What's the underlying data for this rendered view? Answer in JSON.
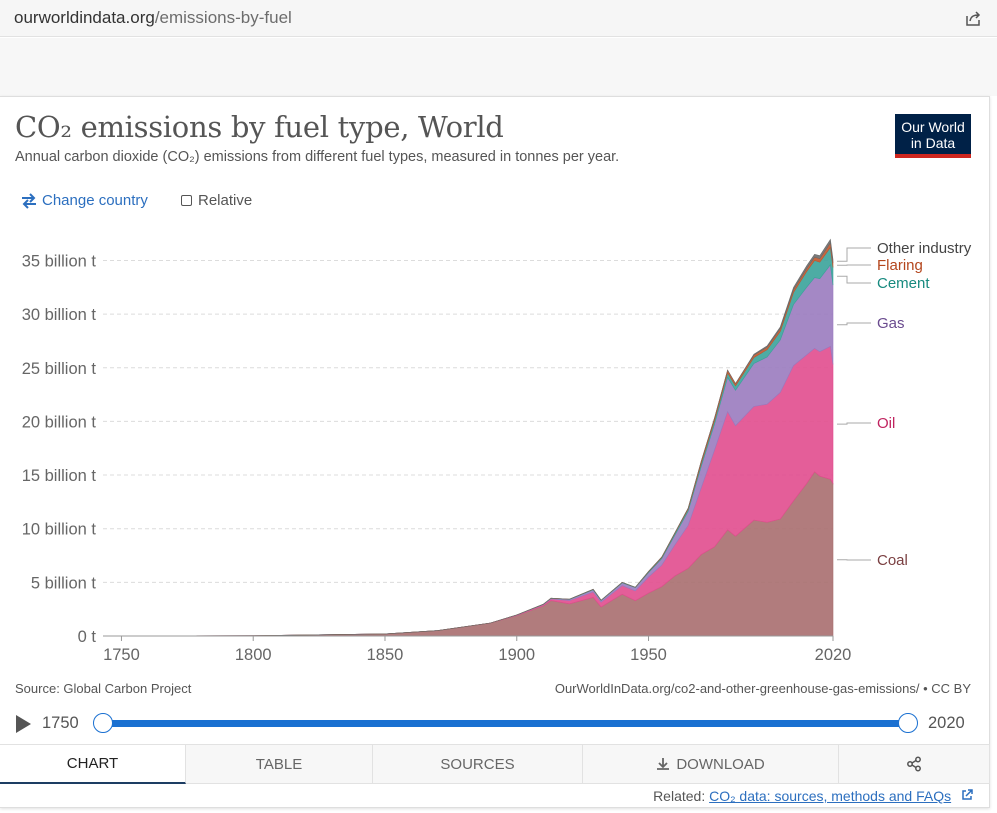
{
  "browser": {
    "url_host": "ourworldindata.org",
    "url_path": "/emissions-by-fuel"
  },
  "header": {
    "title": "CO₂ emissions by fuel type, World",
    "subtitle": "Annual carbon dioxide (CO₂) emissions from different fuel types, measured in tonnes per year.",
    "logo_line1": "Our World",
    "logo_line2": "in Data"
  },
  "controls": {
    "change_country": "Change country",
    "relative": "Relative"
  },
  "footer": {
    "source": "Source: Global Carbon Project",
    "citation": "OurWorldInData.org/co2-and-other-greenhouse-gas-emissions/ • CC BY",
    "related_label": "Related:",
    "related_link": "CO₂ data: sources, methods and FAQs"
  },
  "timeline": {
    "start": "1750",
    "end": "2020"
  },
  "tabs": [
    {
      "label": "CHART"
    },
    {
      "label": "TABLE"
    },
    {
      "label": "SOURCES"
    },
    {
      "label": "DOWNLOAD"
    }
  ],
  "colors": {
    "coal": "#a86e6f",
    "oil": "#e14c8e",
    "gas": "#9a7bbf",
    "cement": "#3aa39a",
    "flaring": "#c0562c",
    "other": "#6b6b6b",
    "accent": "#1a70d1"
  },
  "chart_data": {
    "type": "area",
    "stacked": true,
    "title": "CO₂ emissions by fuel type, World",
    "x": [
      1750,
      1800,
      1850,
      1870,
      1890,
      1900,
      1910,
      1913,
      1920,
      1929,
      1932,
      1940,
      1945,
      1950,
      1955,
      1960,
      1965,
      1970,
      1975,
      1980,
      1983,
      1990,
      1995,
      2000,
      2005,
      2010,
      2013,
      2015,
      2019,
      2020
    ],
    "xlim": [
      1743,
      2020
    ],
    "ylim": [
      0,
      37000000000
    ],
    "yticks": [
      0,
      5000000000,
      10000000000,
      15000000000,
      20000000000,
      25000000000,
      30000000000,
      35000000000
    ],
    "ytick_labels": [
      "0 t",
      "5 billion t",
      "10 billion t",
      "15 billion t",
      "20 billion t",
      "25 billion t",
      "30 billion t",
      "35 billion t"
    ],
    "xticks": [
      1750,
      1800,
      1850,
      1900,
      1950,
      2020
    ],
    "xtick_labels": [
      "1750",
      "1800",
      "1850",
      "1900",
      "1950",
      "2020"
    ],
    "grid": true,
    "series": [
      {
        "name": "Coal",
        "key": "coal",
        "values": [
          9000000.0,
          28000000.0,
          197000000.0,
          500000000.0,
          1200000000.0,
          1900000000.0,
          2800000000.0,
          3300000000.0,
          3000000000.0,
          3600000000.0,
          2700000000.0,
          3900000000.0,
          3300000000.0,
          4000000000.0,
          4600000000.0,
          5600000000.0,
          6300000000.0,
          7600000000.0,
          8300000000.0,
          9900000000.0,
          9300000000.0,
          10800000000.0,
          10600000000.0,
          10900000000.0,
          12600000000.0,
          14200000000.0,
          15300000000.0,
          14900000000.0,
          14600000000.0,
          14200000000.0
        ]
      },
      {
        "name": "Oil",
        "key": "oil",
        "values": [
          0,
          0,
          0,
          0,
          10000000.0,
          50000000.0,
          100000000.0,
          150000000.0,
          300000000.0,
          500000000.0,
          450000000.0,
          800000000.0,
          900000000.0,
          1500000000.0,
          2000000000.0,
          2900000000.0,
          4000000000.0,
          6200000000.0,
          9000000000.0,
          11000000000.0,
          10300000000.0,
          10600000000.0,
          11000000000.0,
          11800000000.0,
          12600000000.0,
          12000000000.0,
          11500000000.0,
          11600000000.0,
          12400000000.0,
          11100000000.0
        ]
      },
      {
        "name": "Gas",
        "key": "gas",
        "values": [
          0,
          0,
          0,
          0,
          0,
          10000000.0,
          30000000.0,
          50000000.0,
          100000000.0,
          200000000.0,
          150000000.0,
          250000000.0,
          300000000.0,
          400000000.0,
          600000000.0,
          900000000.0,
          1300000000.0,
          2000000000.0,
          2400000000.0,
          3200000000.0,
          3300000000.0,
          4000000000.0,
          4400000000.0,
          4900000000.0,
          5700000000.0,
          6300000000.0,
          6600000000.0,
          6800000000.0,
          7600000000.0,
          7400000000.0
        ]
      },
      {
        "name": "Cement",
        "key": "cement",
        "values": [
          0,
          0,
          0,
          0,
          5000000.0,
          10000000.0,
          20000000.0,
          20000000.0,
          30000000.0,
          50000000.0,
          40000000.0,
          50000000.0,
          40000000.0,
          80000000.0,
          110000000.0,
          160000000.0,
          210000000.0,
          280000000.0,
          330000000.0,
          420000000.0,
          420000000.0,
          560000000.0,
          680000000.0,
          800000000.0,
          1110000000.0,
          1460000000.0,
          1600000000.0,
          1540000000.0,
          1620000000.0,
          1640000000.0
        ]
      },
      {
        "name": "Flaring",
        "key": "flaring",
        "values": [
          0,
          0,
          0,
          0,
          0,
          0,
          0,
          0,
          0,
          0,
          0,
          0,
          0,
          30000000.0,
          40000000.0,
          60000000.0,
          90000000.0,
          200000000.0,
          250000000.0,
          250000000.0,
          200000000.0,
          220000000.0,
          240000000.0,
          260000000.0,
          270000000.0,
          280000000.0,
          300000000.0,
          320000000.0,
          430000000.0,
          430000000.0
        ]
      },
      {
        "name": "Other industry",
        "key": "other",
        "values": [
          0,
          0,
          0,
          0,
          0,
          0,
          0,
          0,
          0,
          0,
          0,
          0,
          0,
          0,
          0,
          0,
          0,
          0,
          0,
          0,
          0,
          80000000.0,
          120000000.0,
          150000000.0,
          200000000.0,
          250000000.0,
          270000000.0,
          280000000.0,
          300000000.0,
          300000000.0
        ]
      }
    ],
    "legend_position": "right (labels at series ends)"
  }
}
